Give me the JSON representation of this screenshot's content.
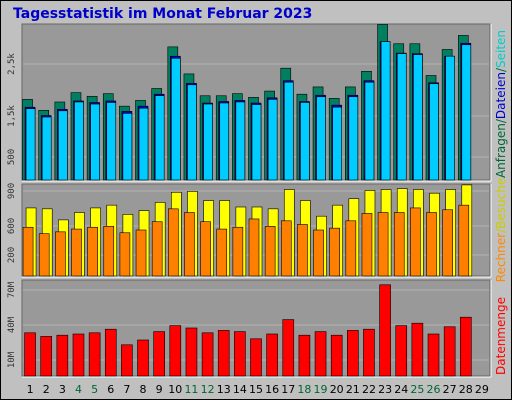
{
  "title": "Tagesstatistik im Monat Februar 2023",
  "legend": {
    "top": [
      {
        "text": "Anfragen",
        "color": "#006633"
      },
      {
        "text": "/",
        "color": "#006633"
      },
      {
        "text": "Dateien",
        "color": "#0000cc"
      },
      {
        "text": "/",
        "color": "#006633"
      },
      {
        "text": "Seiten",
        "color": "#00cccc"
      }
    ],
    "middle": [
      {
        "text": "Rechner",
        "color": "#ff8800"
      },
      {
        "text": "/",
        "color": "#cccc00"
      },
      {
        "text": "Besuche",
        "color": "#cccc00"
      }
    ],
    "bottom": [
      {
        "text": "Datenmenge",
        "color": "#ff0000"
      }
    ]
  },
  "chart_data": [
    {
      "type": "bar",
      "name": "panel-requests-files-pages",
      "y_ticks": [
        "500",
        "1,5k",
        "2,5k"
      ],
      "ylim": [
        0,
        3000
      ],
      "categories": [
        "1",
        "2",
        "3",
        "4",
        "5",
        "6",
        "7",
        "8",
        "9",
        "10",
        "11",
        "12",
        "13",
        "14",
        "15",
        "16",
        "17",
        "18",
        "19",
        "20",
        "21",
        "22",
        "23",
        "24",
        "25",
        "26",
        "27",
        "28",
        "29"
      ],
      "series": [
        {
          "name": "Anfragen",
          "color": "#008060",
          "values": [
            1550,
            1340,
            1500,
            1680,
            1610,
            1660,
            1420,
            1530,
            1760,
            2560,
            2040,
            1620,
            1620,
            1660,
            1590,
            1710,
            2150,
            1650,
            1790,
            1570,
            1790,
            2090,
            2990,
            2620,
            2620,
            2010,
            2510,
            2780,
            null
          ]
        },
        {
          "name": "Dateien",
          "color": "#0000cc",
          "values": [
            1400,
            1240,
            1360,
            1520,
            1490,
            1520,
            1320,
            1420,
            1650,
            2380,
            1860,
            1480,
            1510,
            1530,
            1480,
            1580,
            1910,
            1510,
            1630,
            1440,
            1630,
            1910,
            2660,
            2440,
            2430,
            1870,
            2380,
            2630,
            null
          ]
        },
        {
          "name": "Seiten",
          "color": "#00ccff",
          "values": [
            1390,
            1230,
            1350,
            1520,
            1480,
            1510,
            1300,
            1400,
            1640,
            2360,
            1850,
            1480,
            1500,
            1520,
            1470,
            1570,
            1900,
            1510,
            1620,
            1420,
            1620,
            1900,
            2680,
            2450,
            2430,
            1870,
            2400,
            2620,
            null
          ]
        }
      ],
      "grid": true
    },
    {
      "type": "bar",
      "name": "panel-hosts-visits",
      "y_ticks": [
        "200",
        "600",
        "900"
      ],
      "ylim": [
        0,
        1000
      ],
      "categories": [
        "1",
        "2",
        "3",
        "4",
        "5",
        "6",
        "7",
        "8",
        "9",
        "10",
        "11",
        "12",
        "13",
        "14",
        "15",
        "16",
        "17",
        "18",
        "19",
        "20",
        "21",
        "22",
        "23",
        "24",
        "25",
        "26",
        "27",
        "28",
        "29"
      ],
      "series": [
        {
          "name": "Besuche",
          "color": "#ffff00",
          "values": [
            740,
            730,
            610,
            690,
            740,
            770,
            670,
            710,
            800,
            910,
            920,
            820,
            820,
            750,
            750,
            730,
            940,
            820,
            650,
            770,
            840,
            930,
            940,
            950,
            940,
            900,
            940,
            990,
            null
          ]
        },
        {
          "name": "Rechner",
          "color": "#ff8000",
          "values": [
            530,
            460,
            480,
            510,
            530,
            540,
            470,
            500,
            590,
            730,
            690,
            590,
            510,
            530,
            620,
            540,
            600,
            560,
            500,
            520,
            600,
            680,
            690,
            690,
            740,
            690,
            720,
            770,
            null
          ]
        }
      ],
      "grid": true
    },
    {
      "type": "bar",
      "name": "panel-traffic",
      "y_ticks": [
        "10M",
        "40M",
        "70M"
      ],
      "ylim": [
        0,
        80
      ],
      "categories": [
        "1",
        "2",
        "3",
        "4",
        "5",
        "6",
        "7",
        "8",
        "9",
        "10",
        "11",
        "12",
        "13",
        "14",
        "15",
        "16",
        "17",
        "18",
        "19",
        "20",
        "21",
        "22",
        "23",
        "24",
        "25",
        "26",
        "27",
        "28",
        "29"
      ],
      "series": [
        {
          "name": "Datenmenge",
          "color": "#ff0000",
          "values": [
            36,
            33,
            34,
            35,
            36,
            39,
            26,
            30,
            37,
            42,
            40,
            36,
            38,
            37,
            31,
            35,
            47,
            34,
            37,
            34,
            38,
            39,
            76,
            42,
            44,
            35,
            41,
            49,
            null
          ]
        }
      ],
      "grid": true
    }
  ],
  "days": [
    {
      "label": "1",
      "weekend": false
    },
    {
      "label": "2",
      "weekend": false
    },
    {
      "label": "3",
      "weekend": false
    },
    {
      "label": "4",
      "weekend": true
    },
    {
      "label": "5",
      "weekend": true
    },
    {
      "label": "6",
      "weekend": false
    },
    {
      "label": "7",
      "weekend": false
    },
    {
      "label": "8",
      "weekend": false
    },
    {
      "label": "9",
      "weekend": false
    },
    {
      "label": "10",
      "weekend": false
    },
    {
      "label": "11",
      "weekend": true
    },
    {
      "label": "12",
      "weekend": true
    },
    {
      "label": "13",
      "weekend": false
    },
    {
      "label": "14",
      "weekend": false
    },
    {
      "label": "15",
      "weekend": false
    },
    {
      "label": "16",
      "weekend": false
    },
    {
      "label": "17",
      "weekend": false
    },
    {
      "label": "18",
      "weekend": true
    },
    {
      "label": "19",
      "weekend": true
    },
    {
      "label": "20",
      "weekend": false
    },
    {
      "label": "21",
      "weekend": false
    },
    {
      "label": "22",
      "weekend": false
    },
    {
      "label": "23",
      "weekend": false
    },
    {
      "label": "24",
      "weekend": false
    },
    {
      "label": "25",
      "weekend": true
    },
    {
      "label": "26",
      "weekend": true
    },
    {
      "label": "27",
      "weekend": false
    },
    {
      "label": "28",
      "weekend": false
    },
    {
      "label": "29",
      "weekend": false
    }
  ],
  "colors": {
    "weekday_label": "#000000",
    "weekend_label": "#006633",
    "panel_bg": "#999999",
    "grid": "#b3b3b3"
  }
}
